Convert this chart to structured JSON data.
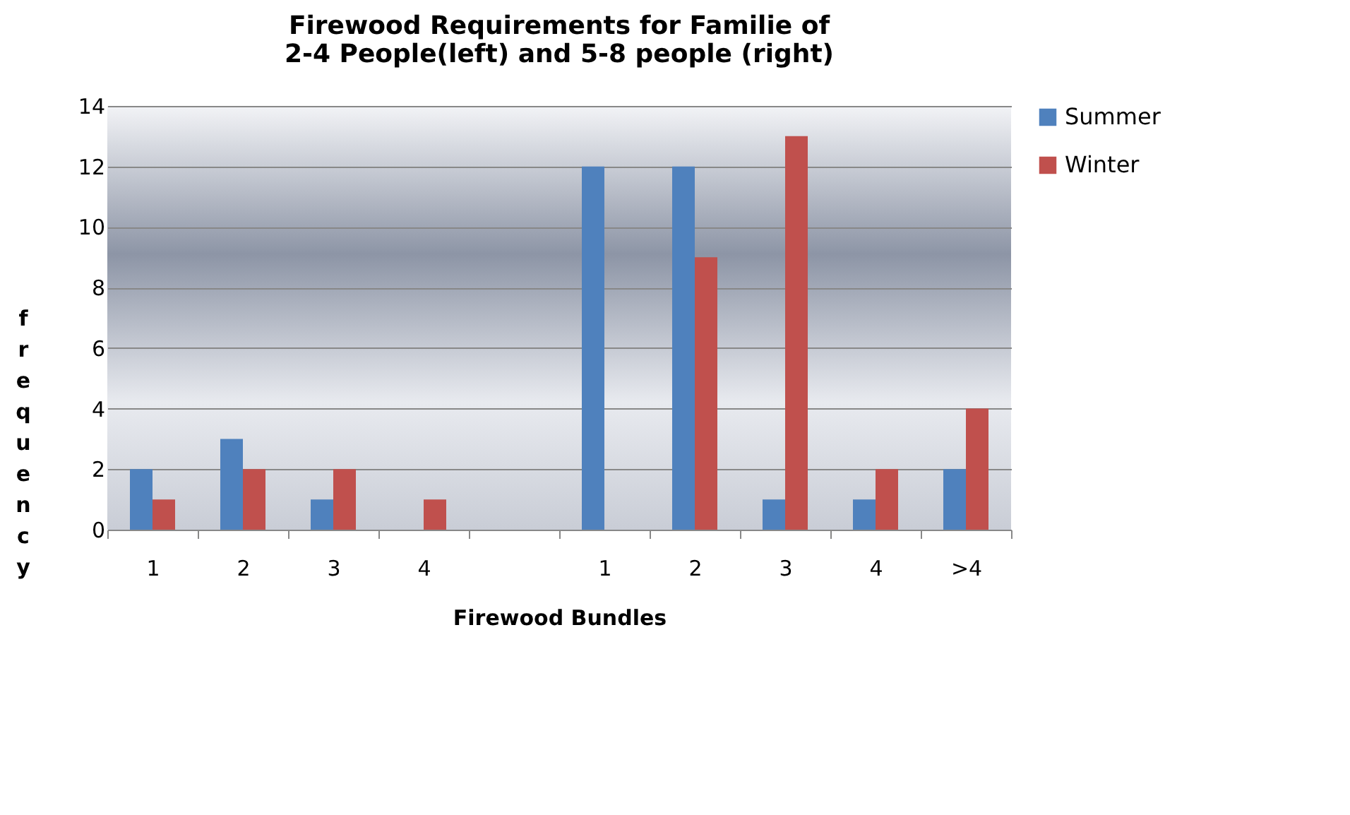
{
  "chart_data": {
    "type": "bar",
    "title": "Firewood Requirements for Familie of 2-4 People(left) and 5-8 people (right)",
    "xlabel": "Firewood Bundles",
    "ylabel": "frequency",
    "categories": [
      "1",
      "2",
      "3",
      "4",
      null,
      "1",
      "2",
      "3",
      "4",
      ">4"
    ],
    "series": [
      {
        "name": "Summer",
        "color": "#4f81bd",
        "values": [
          2,
          3,
          1,
          0,
          null,
          12,
          12,
          1,
          1,
          2
        ]
      },
      {
        "name": "Winter",
        "color": "#c0504d",
        "values": [
          1,
          2,
          2,
          1,
          null,
          0,
          9,
          13,
          2,
          4
        ]
      }
    ],
    "ylim": [
      0,
      14
    ],
    "yticks": [
      0,
      2,
      4,
      6,
      8,
      10,
      12,
      14
    ],
    "grid": "y",
    "legend": "right"
  }
}
